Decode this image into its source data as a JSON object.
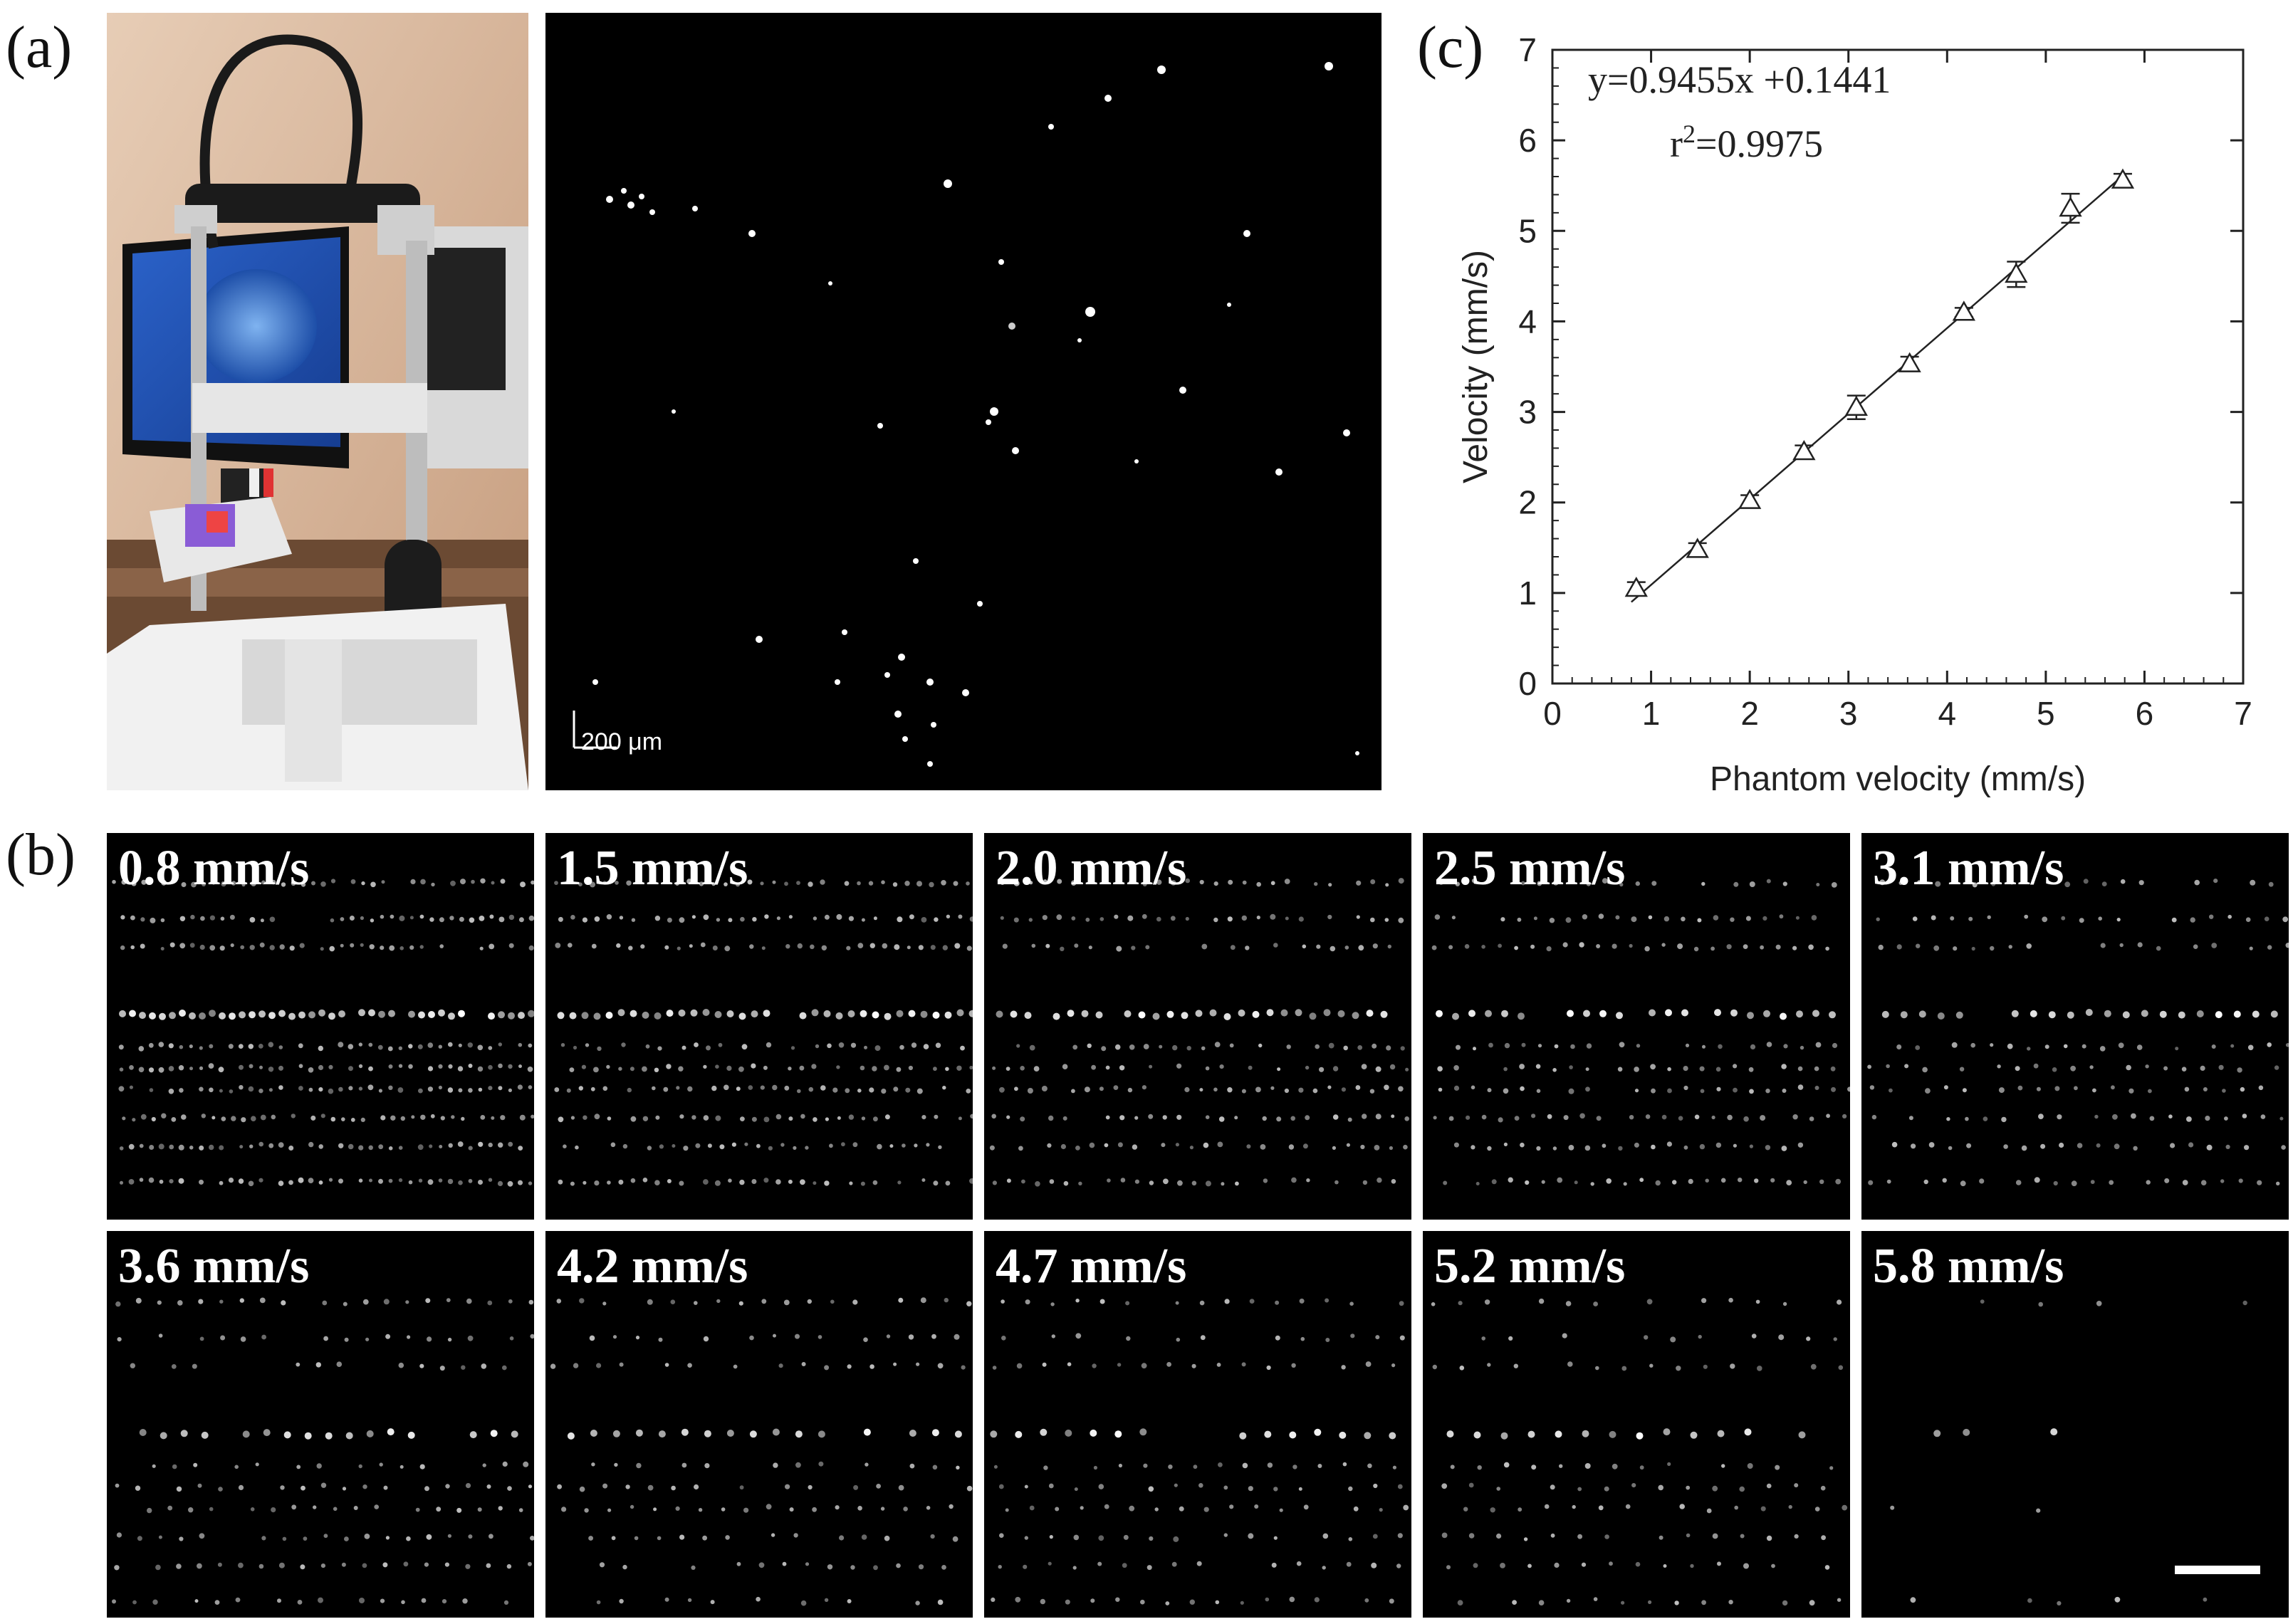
{
  "panel_labels": {
    "a": "(a)",
    "b": "(b)",
    "c": "(c)"
  },
  "photo": {
    "description_icon": "slit-lamp-microscope-photo"
  },
  "micrograph": {
    "scalebar_label": "200 μm"
  },
  "tiles": [
    {
      "label": "0.8 mm/s"
    },
    {
      "label": "1.5 mm/s"
    },
    {
      "label": "2.0 mm/s"
    },
    {
      "label": "2.5 mm/s"
    },
    {
      "label": "3.1 mm/s"
    },
    {
      "label": "3.6 mm/s"
    },
    {
      "label": "4.2 mm/s"
    },
    {
      "label": "4.7 mm/s"
    },
    {
      "label": "5.2 mm/s"
    },
    {
      "label": "5.8 mm/s"
    }
  ],
  "chart_data": {
    "type": "scatter",
    "title": "",
    "xlabel": "Phantom velocity (mm/s)",
    "ylabel": "Velocity (mm/s)",
    "xlim": [
      0,
      7
    ],
    "ylim": [
      0,
      7
    ],
    "xticks": [
      "0",
      "1",
      "2",
      "3",
      "4",
      "5",
      "6",
      "7"
    ],
    "yticks": [
      "0",
      "1",
      "2",
      "3",
      "4",
      "5",
      "6",
      "7"
    ],
    "grid": false,
    "marker": "open-triangle",
    "equation": "y=0.9455x +0.1441",
    "r2_prefix": "r",
    "r2_sup": "2",
    "r2_value": "=0.9975",
    "fit": {
      "slope": 0.9455,
      "intercept": 0.1441,
      "x_range": [
        0.8,
        5.8
      ]
    },
    "points": [
      {
        "x": 0.85,
        "y": 1.05,
        "err": 0.07
      },
      {
        "x": 1.47,
        "y": 1.48,
        "err": 0.07
      },
      {
        "x": 2.0,
        "y": 2.02,
        "err": 0.06
      },
      {
        "x": 2.55,
        "y": 2.56,
        "err": 0.07
      },
      {
        "x": 3.08,
        "y": 3.05,
        "err": 0.13
      },
      {
        "x": 3.62,
        "y": 3.53,
        "err": 0.08
      },
      {
        "x": 4.17,
        "y": 4.1,
        "err": 0.05
      },
      {
        "x": 4.7,
        "y": 4.52,
        "err": 0.14
      },
      {
        "x": 5.25,
        "y": 5.25,
        "err": 0.16
      },
      {
        "x": 5.78,
        "y": 5.56,
        "err": 0.07
      }
    ]
  }
}
